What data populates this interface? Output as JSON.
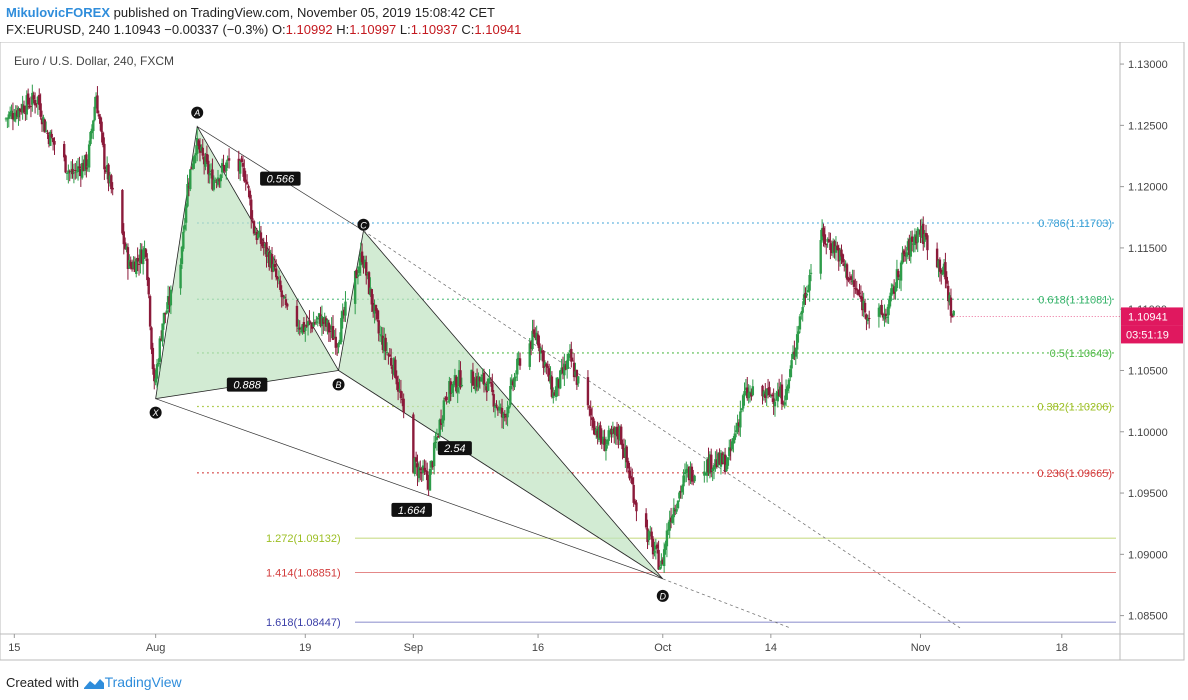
{
  "header": {
    "author": "MikulovicFOREX",
    "published": " published on TradingView.com, November 05, 2019 15:08:42 CET",
    "symbol_line": "FX:EURUSD, 240  1.10943  −0.00337 (−0.3%)",
    "ohlc": {
      "O_label": " O:",
      "O": "1.10992",
      "H_label": " H:",
      "H": "1.10997",
      "L_label": " L:",
      "L": "1.10937",
      "C_label": " C:",
      "C": "1.10941"
    }
  },
  "footer": {
    "created_with": "Created with",
    "brand": "TradingView"
  },
  "colors": {
    "up": "#2e9c4a",
    "down": "#8b1a3a",
    "price_tag": "#e0185f",
    "pattern_fill": "#bfe3c0",
    "pattern_edge": "#222222",
    "fib_786": "#3aa0d6",
    "fib_618": "#36b36a",
    "fib_5": "#4cb843",
    "fib_382": "#9cbf24",
    "fib_236": "#d23a3a",
    "ext_1272": "#9cbf24",
    "ext_1414": "#d23a3a",
    "ext_1618": "#3b3fa8"
  },
  "chart_data": {
    "type": "candlestick",
    "title": "Euro / U.S. Dollar, 240, FXCM",
    "y_range": [
      1.0835,
      1.1318
    ],
    "y_ticks": [
      "1.13000",
      "1.12500",
      "1.12000",
      "1.11500",
      "1.11000",
      "1.10500",
      "1.10000",
      "1.09500",
      "1.09000",
      "1.08500"
    ],
    "x_ticks": [
      "15",
      "Aug",
      "19",
      "Sep",
      "16",
      "Oct",
      "14",
      "Nov",
      "18"
    ],
    "x_tick_dates": [
      "2019-07-15",
      "2019-08-01",
      "2019-08-19",
      "2019-09-01",
      "2019-09-16",
      "2019-10-01",
      "2019-10-14",
      "2019-11-01",
      "2019-11-18"
    ],
    "x_range": [
      "2019-07-14",
      "2019-11-25"
    ],
    "current_price": "1.10941",
    "countdown": "03:51:19",
    "fib_levels": [
      {
        "label": "0.786(1.11703)",
        "value": 1.11703,
        "color_key": "fib_786"
      },
      {
        "label": "0.618(1.11081)",
        "value": 1.11081,
        "color_key": "fib_618"
      },
      {
        "label": "0.5(1.10643)",
        "value": 1.10643,
        "color_key": "fib_5"
      },
      {
        "label": "0.382(1.10206)",
        "value": 1.10206,
        "color_key": "fib_382"
      },
      {
        "label": "0.236(1.09665)",
        "value": 1.09665,
        "color_key": "fib_236"
      }
    ],
    "extension_levels": [
      {
        "label": "1.272(1.09132)",
        "value": 1.09132,
        "color_key": "ext_1272"
      },
      {
        "label": "1.414(1.08851)",
        "value": 1.08851,
        "color_key": "ext_1414"
      },
      {
        "label": "1.618(1.08447)",
        "value": 1.08447,
        "color_key": "ext_1618"
      }
    ],
    "harmonic_points": [
      {
        "label": "X",
        "date": "2019-08-01",
        "price": 1.1027
      },
      {
        "label": "A",
        "date": "2019-08-06",
        "price": 1.1249
      },
      {
        "label": "B",
        "date": "2019-08-23",
        "price": 1.105
      },
      {
        "label": "C",
        "date": "2019-08-26",
        "price": 1.1164
      },
      {
        "label": "D",
        "date": "2019-10-01",
        "price": 1.088
      }
    ],
    "harmonic_ratios": [
      "0.566",
      "0.888",
      "1.664",
      "2.54"
    ],
    "price_path": [
      [
        "2019-07-14",
        1.1255
      ],
      [
        "2019-07-16",
        1.1265
      ],
      [
        "2019-07-18",
        1.1272
      ],
      [
        "2019-07-19",
        1.1245
      ],
      [
        "2019-07-20",
        1.1235
      ],
      [
        "2019-07-22",
        1.121
      ],
      [
        "2019-07-24",
        1.122
      ],
      [
        "2019-07-25",
        1.1275
      ],
      [
        "2019-07-26",
        1.122
      ],
      [
        "2019-07-28",
        1.1165
      ],
      [
        "2019-07-29",
        1.1135
      ],
      [
        "2019-07-30",
        1.114
      ],
      [
        "2019-07-31",
        1.115
      ],
      [
        "2019-08-01",
        1.1035
      ],
      [
        "2019-08-02",
        1.109
      ],
      [
        "2019-08-04",
        1.113
      ],
      [
        "2019-08-05",
        1.12
      ],
      [
        "2019-08-06",
        1.1235
      ],
      [
        "2019-08-08",
        1.1205
      ],
      [
        "2019-08-10",
        1.122
      ],
      [
        "2019-08-12",
        1.121
      ],
      [
        "2019-08-13",
        1.1165
      ],
      [
        "2019-08-15",
        1.114
      ],
      [
        "2019-08-17",
        1.1095
      ],
      [
        "2019-08-19",
        1.1085
      ],
      [
        "2019-08-21",
        1.1092
      ],
      [
        "2019-08-23",
        1.1075
      ],
      [
        "2019-08-26",
        1.1145
      ],
      [
        "2019-08-28",
        1.108
      ],
      [
        "2019-08-30",
        1.105
      ],
      [
        "2019-09-01",
        1.0975
      ],
      [
        "2019-09-03",
        1.096
      ],
      [
        "2019-09-05",
        1.103
      ],
      [
        "2019-09-07",
        1.1045
      ],
      [
        "2019-09-10",
        1.104
      ],
      [
        "2019-09-12",
        1.101
      ],
      [
        "2019-09-14",
        1.106
      ],
      [
        "2019-09-16",
        1.108
      ],
      [
        "2019-09-18",
        1.103
      ],
      [
        "2019-09-20",
        1.106
      ],
      [
        "2019-09-22",
        1.102
      ],
      [
        "2019-09-24",
        1.099
      ],
      [
        "2019-09-26",
        1.1
      ],
      [
        "2019-09-28",
        1.094
      ],
      [
        "2019-09-30",
        1.0905
      ],
      [
        "2019-10-01",
        1.089
      ],
      [
        "2019-10-02",
        1.093
      ],
      [
        "2019-10-04",
        1.0965
      ],
      [
        "2019-10-07",
        1.0975
      ],
      [
        "2019-10-09",
        1.0975
      ],
      [
        "2019-10-11",
        1.103
      ],
      [
        "2019-10-14",
        1.103
      ],
      [
        "2019-10-16",
        1.103
      ],
      [
        "2019-10-18",
        1.1105
      ],
      [
        "2019-10-20",
        1.116
      ],
      [
        "2019-10-22",
        1.115
      ],
      [
        "2019-10-24",
        1.112
      ],
      [
        "2019-10-26",
        1.1095
      ],
      [
        "2019-10-28",
        1.1095
      ],
      [
        "2019-10-30",
        1.114
      ],
      [
        "2019-11-01",
        1.1165
      ],
      [
        "2019-11-02",
        1.1155
      ],
      [
        "2019-11-04",
        1.113
      ],
      [
        "2019-11-05",
        1.1094
      ]
    ]
  }
}
